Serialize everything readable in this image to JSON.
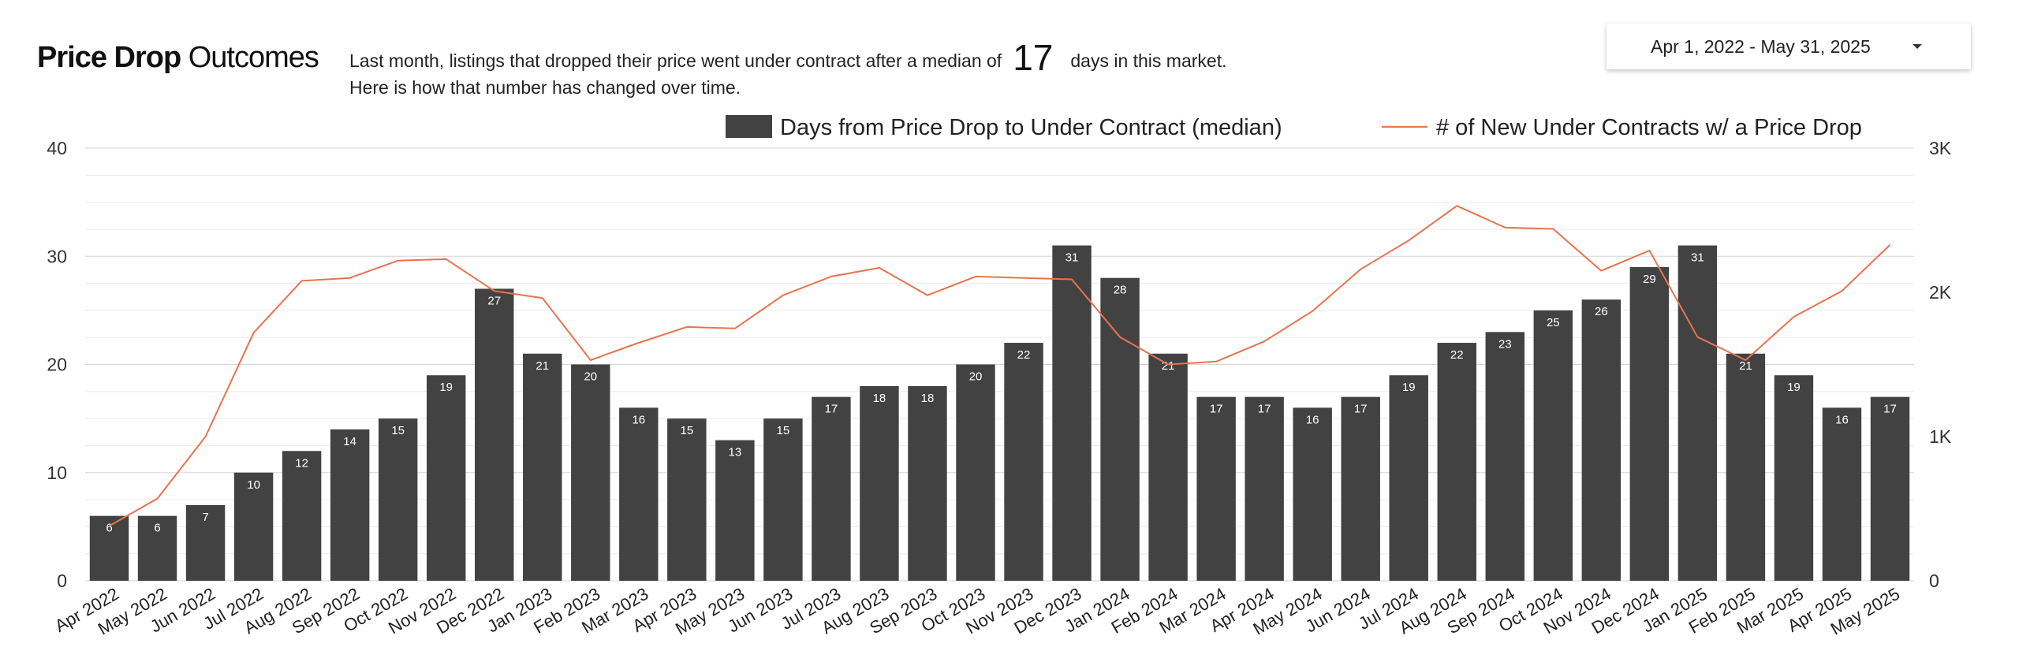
{
  "header": {
    "title_bold": "Price Drop",
    "title_light": "Outcomes",
    "desc_prefix": "Last month,  listings that dropped their price went under contract after a median of",
    "median_value": "17",
    "desc_suffix": "days in this market.",
    "desc_line2": "Here is how that number has changed over time."
  },
  "date_range": {
    "label": "Apr 1, 2022 - May 31, 2025"
  },
  "colors": {
    "bar": "#424242",
    "line": "#e8734f",
    "grid": "#dddddd"
  },
  "chart_data": {
    "type": "bar",
    "title": "",
    "xlabel": "",
    "ylabel": "",
    "grid": true,
    "legend_position": "top-right",
    "categories": [
      "Apr 2022",
      "May 2022",
      "Jun 2022",
      "Jul 2022",
      "Aug 2022",
      "Sep 2022",
      "Oct 2022",
      "Nov 2022",
      "Dec 2022",
      "Jan 2023",
      "Feb 2023",
      "Mar 2023",
      "Apr 2023",
      "May 2023",
      "Jun 2023",
      "Jul 2023",
      "Aug 2023",
      "Sep 2023",
      "Oct 2023",
      "Nov 2023",
      "Dec 2023",
      "Jan 2024",
      "Feb 2024",
      "Mar 2024",
      "Apr 2024",
      "May 2024",
      "Jun 2024",
      "Jul 2024",
      "Aug 2024",
      "Sep 2024",
      "Oct 2024",
      "Nov 2024",
      "Dec 2024",
      "Jan 2025",
      "Feb 2025",
      "Mar 2025",
      "Apr 2025",
      "May 2025"
    ],
    "ylim": [
      0,
      40
    ],
    "y_ticks": [
      "0",
      "10",
      "20",
      "30",
      "40"
    ],
    "y2lim": [
      0,
      3000
    ],
    "y2_ticks": [
      "0",
      "1K",
      "2K",
      "3K"
    ],
    "series": [
      {
        "name": "Days from Price Drop to Under Contract (median)",
        "type": "bar",
        "axis": "left",
        "values": [
          6,
          6,
          7,
          10,
          12,
          14,
          15,
          19,
          27,
          21,
          20,
          16,
          15,
          13,
          15,
          17,
          18,
          18,
          20,
          22,
          31,
          28,
          21,
          17,
          17,
          16,
          17,
          19,
          22,
          23,
          25,
          26,
          29,
          31,
          21,
          19,
          16,
          17
        ]
      },
      {
        "name": "# of New Under Contracts w/ a Price Drop",
        "type": "line",
        "axis": "right",
        "values": [
          380,
          570,
          1000,
          1720,
          2080,
          2100,
          2220,
          2230,
          2010,
          1960,
          1530,
          1650,
          1760,
          1750,
          1980,
          2110,
          2170,
          1980,
          2110,
          2100,
          2090,
          1690,
          1500,
          1520,
          1660,
          1870,
          2160,
          2360,
          2600,
          2450,
          2440,
          2150,
          2290,
          1690,
          1530,
          1830,
          2010,
          2330
        ]
      }
    ]
  }
}
